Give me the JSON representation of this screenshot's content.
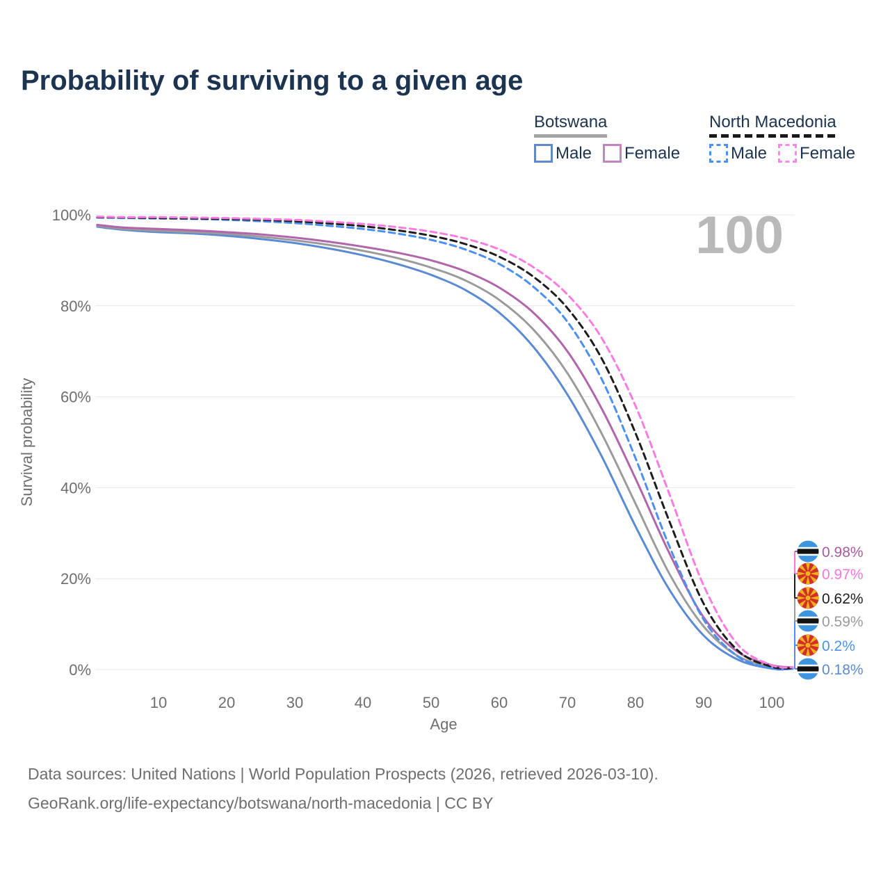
{
  "title": "Probability of surviving to a given age",
  "legend": {
    "groups": [
      {
        "name": "Botswana",
        "line_style": "solid",
        "underline_color": "#a3a3a3",
        "items": [
          {
            "label": "Male",
            "swatch_color": "#5e89cf"
          },
          {
            "label": "Female",
            "swatch_color": "#c583c1"
          }
        ]
      },
      {
        "name": "North Macedonia",
        "line_style": "dashed",
        "underline_color": "#1a1a1a",
        "items": [
          {
            "label": "Male",
            "swatch_color": "#4a90f2"
          },
          {
            "label": "Female",
            "swatch_color": "#fc87e6"
          }
        ]
      }
    ]
  },
  "chart_data": {
    "type": "line",
    "title": "Probability of surviving to a given age",
    "xlabel": "Age",
    "ylabel": "Survival probability",
    "watermark": "100",
    "grid": true,
    "legend_position": "top-right",
    "xlim": [
      1,
      100
    ],
    "ylim": [
      0,
      100
    ],
    "x_ticks": [
      10,
      20,
      30,
      40,
      50,
      60,
      70,
      80,
      90,
      100
    ],
    "y_ticks": [
      "0%",
      "20%",
      "40%",
      "60%",
      "80%",
      "100%"
    ],
    "ages": [
      1,
      5,
      10,
      15,
      20,
      25,
      30,
      35,
      40,
      45,
      50,
      55,
      60,
      65,
      70,
      75,
      80,
      85,
      90,
      95,
      100
    ],
    "series": [
      {
        "id": "botswana-male",
        "country": "Botswana",
        "sex": "Male",
        "style": "solid",
        "color": "#5b8ad4",
        "values": [
          97.4,
          96.7,
          96.2,
          95.9,
          95.4,
          94.7,
          93.8,
          92.6,
          91.1,
          89.2,
          86.8,
          83.5,
          78.5,
          71.0,
          60.5,
          47.0,
          31.5,
          17.5,
          7.5,
          2.2,
          0.18
        ],
        "end_label": {
          "text": "0.18%",
          "color": "#5b8ad4",
          "flag": "botswana"
        }
      },
      {
        "id": "botswana-total",
        "country": "Botswana",
        "sex": "Both",
        "style": "solid",
        "color": "#9b9b9b",
        "values": [
          97.6,
          96.9,
          96.5,
          96.2,
          95.8,
          95.2,
          94.4,
          93.4,
          92.1,
          90.5,
          88.4,
          85.6,
          81.3,
          74.8,
          65.2,
          52.0,
          36.5,
          21.0,
          9.5,
          3.0,
          0.59
        ],
        "end_label": {
          "text": "0.59%",
          "color": "#9b9b9b",
          "flag": "botswana"
        }
      },
      {
        "id": "botswana-female",
        "country": "Botswana",
        "sex": "Female",
        "style": "solid",
        "color": "#b165ab",
        "values": [
          97.8,
          97.2,
          96.9,
          96.6,
          96.2,
          95.7,
          95.0,
          94.1,
          93.0,
          91.7,
          90.0,
          87.6,
          84.0,
          78.5,
          70.0,
          57.5,
          42.0,
          25.5,
          11.5,
          3.9,
          0.98
        ],
        "end_label": {
          "text": "0.98%",
          "color": "#a85aa1",
          "flag": "botswana"
        }
      },
      {
        "id": "north-macedonia-male",
        "country": "North Macedonia",
        "sex": "Male",
        "style": "dashed",
        "color": "#4a90f2",
        "values": [
          99.4,
          99.3,
          99.2,
          99.1,
          98.9,
          98.6,
          98.2,
          97.6,
          96.9,
          95.9,
          94.5,
          92.4,
          89.2,
          84.2,
          76.5,
          64.0,
          46.5,
          27.0,
          11.0,
          2.9,
          0.2
        ],
        "end_label": {
          "text": "0.2%",
          "color": "#4a90f2",
          "flag": "north-macedonia"
        }
      },
      {
        "id": "north-macedonia-total",
        "country": "North Macedonia",
        "sex": "Both",
        "style": "dashed",
        "color": "#1d1d1d",
        "values": [
          99.5,
          99.4,
          99.3,
          99.2,
          99.1,
          98.9,
          98.6,
          98.1,
          97.5,
          96.6,
          95.4,
          93.6,
          90.8,
          86.4,
          79.5,
          68.5,
          52.0,
          32.5,
          14.5,
          4.2,
          0.62
        ],
        "end_label": {
          "text": "0.62%",
          "color": "#1d1d1d",
          "flag": "north-macedonia"
        }
      },
      {
        "id": "north-macedonia-female",
        "country": "North Macedonia",
        "sex": "Female",
        "style": "dashed",
        "color": "#fb7ce1",
        "values": [
          99.6,
          99.5,
          99.5,
          99.4,
          99.3,
          99.1,
          98.9,
          98.5,
          98.0,
          97.3,
          96.3,
          94.8,
          92.4,
          88.5,
          82.5,
          73.0,
          58.0,
          38.5,
          18.5,
          5.5,
          0.97
        ],
        "end_label": {
          "text": "0.97%",
          "color": "#fb75df",
          "flag": "north-macedonia"
        }
      }
    ]
  },
  "footer": {
    "line1": "Data sources: United Nations | World Population Prospects (2026, retrieved 2026-03-10).",
    "line2": "GeoRank.org/life-expectancy/botswana/north-macedonia | CC BY"
  }
}
